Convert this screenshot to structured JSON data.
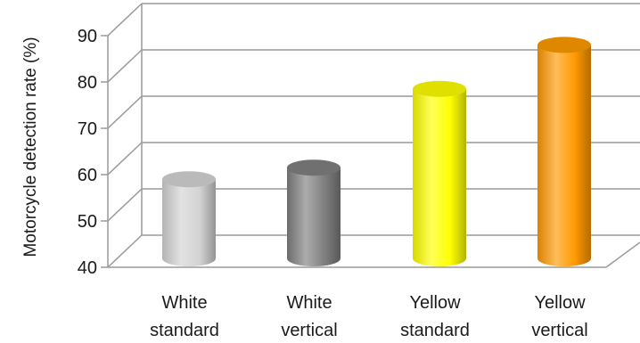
{
  "chart_data": {
    "type": "bar",
    "title": "",
    "xlabel": "",
    "ylabel": "Motorcycle detection rate (%)",
    "ylim": [
      40,
      90
    ],
    "yticks": [
      40,
      50,
      60,
      70,
      80,
      90
    ],
    "grid": true,
    "categories": [
      [
        "White",
        "standard"
      ],
      [
        "White",
        "vertical"
      ],
      [
        "Yellow",
        "standard"
      ],
      [
        "Yellow",
        "vertical"
      ]
    ],
    "values": [
      59,
      61.5,
      78.5,
      88
    ],
    "colors": [
      "#d3d3d3",
      "#7f7f7f",
      "#ffff00",
      "#ff9900"
    ]
  }
}
